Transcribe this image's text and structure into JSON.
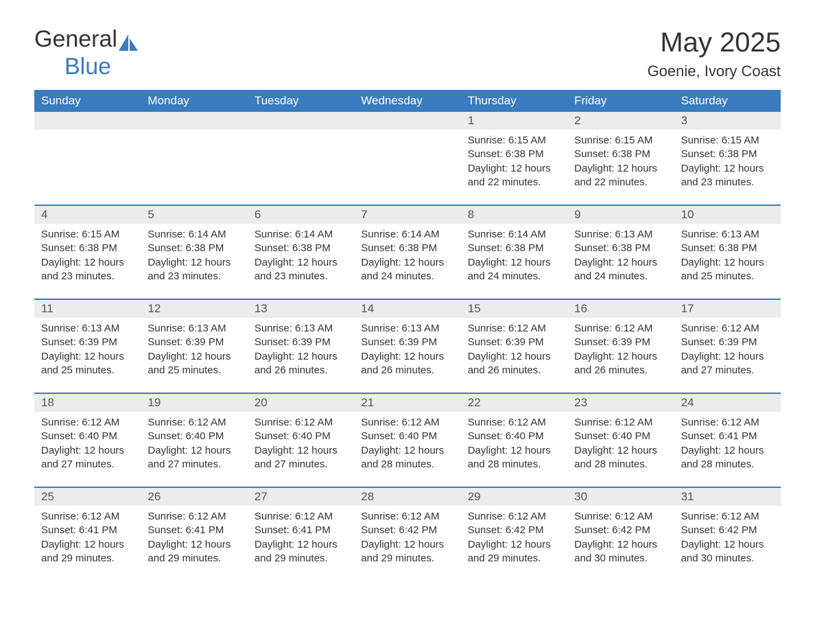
{
  "logo": {
    "text_general": "General",
    "text_blue": "Blue",
    "icon_color": "#3b7bbf",
    "text_color_general": "#333333",
    "text_color_blue": "#3b7bbf",
    "fontsize": 34
  },
  "header": {
    "title": "May 2025",
    "subtitle": "Goenie, Ivory Coast",
    "title_fontsize": 40,
    "subtitle_fontsize": 22,
    "title_color": "#333333",
    "subtitle_color": "#333333"
  },
  "calendar": {
    "type": "table",
    "header_bg": "#3b7bbf",
    "header_text_color": "#ffffff",
    "weekday_fontsize": 17,
    "daynum_bg": "#ececec",
    "daynum_color": "#555555",
    "daynum_fontsize": 17,
    "content_fontsize": 15,
    "content_color": "#333333",
    "row_border_color": "#3b7bbf",
    "row_border_width": 2,
    "background_color": "#ffffff",
    "weekdays": [
      "Sunday",
      "Monday",
      "Tuesday",
      "Wednesday",
      "Thursday",
      "Friday",
      "Saturday"
    ],
    "weeks": [
      [
        {
          "day": "",
          "sunrise": "",
          "sunset": "",
          "daylight": ""
        },
        {
          "day": "",
          "sunrise": "",
          "sunset": "",
          "daylight": ""
        },
        {
          "day": "",
          "sunrise": "",
          "sunset": "",
          "daylight": ""
        },
        {
          "day": "",
          "sunrise": "",
          "sunset": "",
          "daylight": ""
        },
        {
          "day": "1",
          "sunrise": "Sunrise: 6:15 AM",
          "sunset": "Sunset: 6:38 PM",
          "daylight": "Daylight: 12 hours and 22 minutes."
        },
        {
          "day": "2",
          "sunrise": "Sunrise: 6:15 AM",
          "sunset": "Sunset: 6:38 PM",
          "daylight": "Daylight: 12 hours and 22 minutes."
        },
        {
          "day": "3",
          "sunrise": "Sunrise: 6:15 AM",
          "sunset": "Sunset: 6:38 PM",
          "daylight": "Daylight: 12 hours and 23 minutes."
        }
      ],
      [
        {
          "day": "4",
          "sunrise": "Sunrise: 6:15 AM",
          "sunset": "Sunset: 6:38 PM",
          "daylight": "Daylight: 12 hours and 23 minutes."
        },
        {
          "day": "5",
          "sunrise": "Sunrise: 6:14 AM",
          "sunset": "Sunset: 6:38 PM",
          "daylight": "Daylight: 12 hours and 23 minutes."
        },
        {
          "day": "6",
          "sunrise": "Sunrise: 6:14 AM",
          "sunset": "Sunset: 6:38 PM",
          "daylight": "Daylight: 12 hours and 23 minutes."
        },
        {
          "day": "7",
          "sunrise": "Sunrise: 6:14 AM",
          "sunset": "Sunset: 6:38 PM",
          "daylight": "Daylight: 12 hours and 24 minutes."
        },
        {
          "day": "8",
          "sunrise": "Sunrise: 6:14 AM",
          "sunset": "Sunset: 6:38 PM",
          "daylight": "Daylight: 12 hours and 24 minutes."
        },
        {
          "day": "9",
          "sunrise": "Sunrise: 6:13 AM",
          "sunset": "Sunset: 6:38 PM",
          "daylight": "Daylight: 12 hours and 24 minutes."
        },
        {
          "day": "10",
          "sunrise": "Sunrise: 6:13 AM",
          "sunset": "Sunset: 6:38 PM",
          "daylight": "Daylight: 12 hours and 25 minutes."
        }
      ],
      [
        {
          "day": "11",
          "sunrise": "Sunrise: 6:13 AM",
          "sunset": "Sunset: 6:39 PM",
          "daylight": "Daylight: 12 hours and 25 minutes."
        },
        {
          "day": "12",
          "sunrise": "Sunrise: 6:13 AM",
          "sunset": "Sunset: 6:39 PM",
          "daylight": "Daylight: 12 hours and 25 minutes."
        },
        {
          "day": "13",
          "sunrise": "Sunrise: 6:13 AM",
          "sunset": "Sunset: 6:39 PM",
          "daylight": "Daylight: 12 hours and 26 minutes."
        },
        {
          "day": "14",
          "sunrise": "Sunrise: 6:13 AM",
          "sunset": "Sunset: 6:39 PM",
          "daylight": "Daylight: 12 hours and 26 minutes."
        },
        {
          "day": "15",
          "sunrise": "Sunrise: 6:12 AM",
          "sunset": "Sunset: 6:39 PM",
          "daylight": "Daylight: 12 hours and 26 minutes."
        },
        {
          "day": "16",
          "sunrise": "Sunrise: 6:12 AM",
          "sunset": "Sunset: 6:39 PM",
          "daylight": "Daylight: 12 hours and 26 minutes."
        },
        {
          "day": "17",
          "sunrise": "Sunrise: 6:12 AM",
          "sunset": "Sunset: 6:39 PM",
          "daylight": "Daylight: 12 hours and 27 minutes."
        }
      ],
      [
        {
          "day": "18",
          "sunrise": "Sunrise: 6:12 AM",
          "sunset": "Sunset: 6:40 PM",
          "daylight": "Daylight: 12 hours and 27 minutes."
        },
        {
          "day": "19",
          "sunrise": "Sunrise: 6:12 AM",
          "sunset": "Sunset: 6:40 PM",
          "daylight": "Daylight: 12 hours and 27 minutes."
        },
        {
          "day": "20",
          "sunrise": "Sunrise: 6:12 AM",
          "sunset": "Sunset: 6:40 PM",
          "daylight": "Daylight: 12 hours and 27 minutes."
        },
        {
          "day": "21",
          "sunrise": "Sunrise: 6:12 AM",
          "sunset": "Sunset: 6:40 PM",
          "daylight": "Daylight: 12 hours and 28 minutes."
        },
        {
          "day": "22",
          "sunrise": "Sunrise: 6:12 AM",
          "sunset": "Sunset: 6:40 PM",
          "daylight": "Daylight: 12 hours and 28 minutes."
        },
        {
          "day": "23",
          "sunrise": "Sunrise: 6:12 AM",
          "sunset": "Sunset: 6:40 PM",
          "daylight": "Daylight: 12 hours and 28 minutes."
        },
        {
          "day": "24",
          "sunrise": "Sunrise: 6:12 AM",
          "sunset": "Sunset: 6:41 PM",
          "daylight": "Daylight: 12 hours and 28 minutes."
        }
      ],
      [
        {
          "day": "25",
          "sunrise": "Sunrise: 6:12 AM",
          "sunset": "Sunset: 6:41 PM",
          "daylight": "Daylight: 12 hours and 29 minutes."
        },
        {
          "day": "26",
          "sunrise": "Sunrise: 6:12 AM",
          "sunset": "Sunset: 6:41 PM",
          "daylight": "Daylight: 12 hours and 29 minutes."
        },
        {
          "day": "27",
          "sunrise": "Sunrise: 6:12 AM",
          "sunset": "Sunset: 6:41 PM",
          "daylight": "Daylight: 12 hours and 29 minutes."
        },
        {
          "day": "28",
          "sunrise": "Sunrise: 6:12 AM",
          "sunset": "Sunset: 6:42 PM",
          "daylight": "Daylight: 12 hours and 29 minutes."
        },
        {
          "day": "29",
          "sunrise": "Sunrise: 6:12 AM",
          "sunset": "Sunset: 6:42 PM",
          "daylight": "Daylight: 12 hours and 29 minutes."
        },
        {
          "day": "30",
          "sunrise": "Sunrise: 6:12 AM",
          "sunset": "Sunset: 6:42 PM",
          "daylight": "Daylight: 12 hours and 30 minutes."
        },
        {
          "day": "31",
          "sunrise": "Sunrise: 6:12 AM",
          "sunset": "Sunset: 6:42 PM",
          "daylight": "Daylight: 12 hours and 30 minutes."
        }
      ]
    ]
  }
}
